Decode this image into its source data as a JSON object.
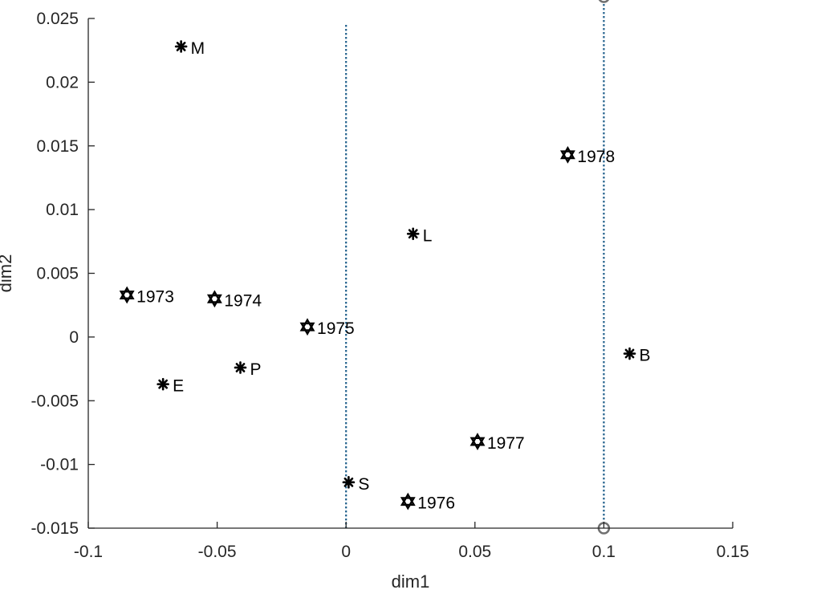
{
  "chart_data": {
    "type": "scatter",
    "title": "",
    "xlabel": "dim1",
    "ylabel": "dim2",
    "xlim": [
      -0.1,
      0.15
    ],
    "ylim": [
      -0.015,
      0.025
    ],
    "xticks": [
      -0.1,
      -0.05,
      0,
      0.05,
      0.1,
      0.15
    ],
    "xtick_labels": [
      "-0.1",
      "-0.05",
      "0",
      "0.05",
      "0.1",
      "0.15"
    ],
    "yticks": [
      -0.015,
      -0.01,
      -0.005,
      0,
      0.005,
      0.01,
      0.015,
      0.02,
      0.025
    ],
    "ytick_labels": [
      "-0.015",
      "-0.01",
      "-0.005",
      "0",
      "0.005",
      "0.01",
      "0.015",
      "0.02",
      "0.025"
    ],
    "grid": false,
    "series": [
      {
        "marker": "asterisk",
        "color": "#000000",
        "points": [
          {
            "label": "M",
            "x": -0.064,
            "y": 0.0228
          },
          {
            "label": "L",
            "x": 0.026,
            "y": 0.0081
          },
          {
            "label": "E",
            "x": -0.071,
            "y": -0.0037
          },
          {
            "label": "P",
            "x": -0.041,
            "y": -0.0024
          },
          {
            "label": "S",
            "x": 0.001,
            "y": -0.0114
          },
          {
            "label": "B",
            "x": 0.11,
            "y": -0.0013
          }
        ]
      },
      {
        "marker": "hexagram",
        "color": "#000000",
        "points": [
          {
            "label": "1973",
            "x": -0.085,
            "y": 0.0033
          },
          {
            "label": "1974",
            "x": -0.051,
            "y": 0.003
          },
          {
            "label": "1975",
            "x": -0.015,
            "y": 0.0008
          },
          {
            "label": "1976",
            "x": 0.024,
            "y": -0.0129
          },
          {
            "label": "1977",
            "x": 0.051,
            "y": -0.0082
          },
          {
            "label": "1978",
            "x": 0.086,
            "y": 0.0143
          }
        ]
      }
    ],
    "reference_lines": [
      {
        "orientation": "vertical",
        "x": 0,
        "style": "dotted",
        "color": "#1f5f8b",
        "y_top": 0.0245
      },
      {
        "orientation": "vertical",
        "x": 0.1,
        "style": "dotted",
        "color": "#1f5f8b",
        "end_markers": "circle",
        "marker_color": "#707070"
      }
    ],
    "colors": {
      "axis": "#262626",
      "reference_line": "#1f5f8b",
      "marker": "#000000"
    }
  }
}
